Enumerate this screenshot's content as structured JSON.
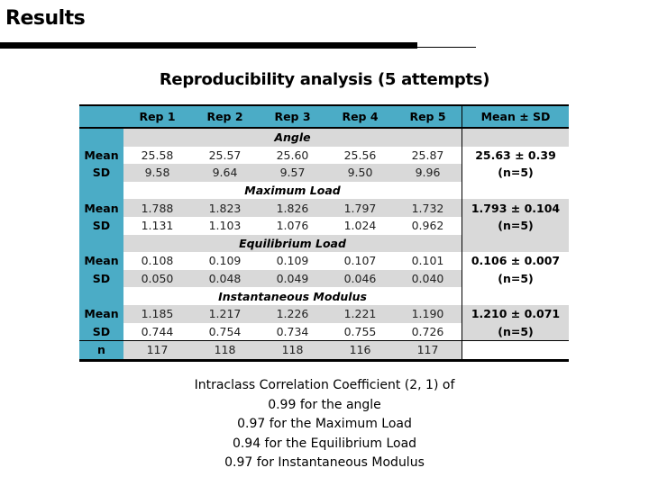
{
  "slide": {
    "title": "Results",
    "subtitle": "Reproducibility analysis (5 attempts)"
  },
  "table": {
    "headers": [
      "",
      "Rep 1",
      "Rep 2",
      "Rep 3",
      "Rep 4",
      "Rep 5",
      "Mean ± SD"
    ],
    "sections": [
      {
        "name": "Angle",
        "mean_label": "Mean",
        "sd_label": "SD",
        "mean": [
          "25.58",
          "25.57",
          "25.60",
          "25.56",
          "25.87"
        ],
        "sd": [
          "9.58",
          "9.64",
          "9.57",
          "9.50",
          "9.96"
        ],
        "summary": "25.63 ± 0.39",
        "summary_n": "(n=5)"
      },
      {
        "name": "Maximum Load",
        "mean_label": "Mean",
        "sd_label": "SD",
        "mean": [
          "1.788",
          "1.823",
          "1.826",
          "1.797",
          "1.732"
        ],
        "sd": [
          "1.131",
          "1.103",
          "1.076",
          "1.024",
          "0.962"
        ],
        "summary": "1.793 ± 0.104",
        "summary_n": "(n=5)"
      },
      {
        "name": "Equilibrium Load",
        "mean_label": "Mean",
        "sd_label": "SD",
        "mean": [
          "0.108",
          "0.109",
          "0.109",
          "0.107",
          "0.101"
        ],
        "sd": [
          "0.050",
          "0.048",
          "0.049",
          "0.046",
          "0.040"
        ],
        "summary": "0.106 ± 0.007",
        "summary_n": "(n=5)"
      },
      {
        "name": "Instantaneous Modulus",
        "mean_label": "Mean",
        "sd_label": "SD",
        "mean": [
          "1.185",
          "1.217",
          "1.226",
          "1.221",
          "1.190"
        ],
        "sd": [
          "0.744",
          "0.754",
          "0.734",
          "0.755",
          "0.726"
        ],
        "summary": "1.210 ± 0.071",
        "summary_n": "(n=5)"
      }
    ],
    "n_row": {
      "label": "n",
      "values": [
        "117",
        "118",
        "118",
        "116",
        "117"
      ]
    }
  },
  "icc": {
    "lines": [
      "Intraclass Correlation Coefficient (2, 1) of",
      "0.99 for the angle",
      "0.97 for the Maximum Load",
      "0.94 for the Equilibrium Load",
      "0.97 for Instantaneous Modulus"
    ]
  },
  "colors": {
    "header_blue": "#4bacc6",
    "row_grey": "#d9d9d9"
  }
}
